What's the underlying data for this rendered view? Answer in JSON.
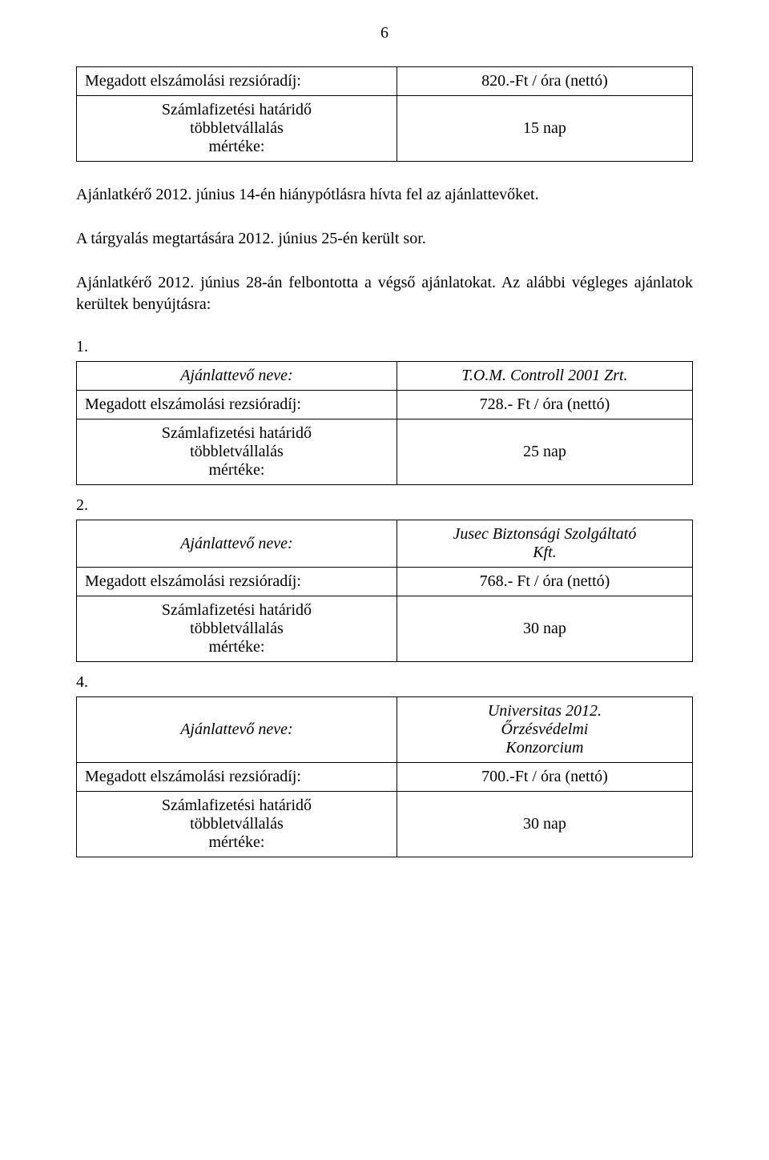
{
  "page_number": "6",
  "labels": {
    "ajanlattevo_neve": "Ajánlattevő neve:",
    "megadott_rezsi": "Megadott elszámolási rezsióradíj:",
    "szamlafizetesi_l1": "Számlafizetési határidő",
    "szamlafizetesi_l2": "többletvállalás",
    "szamlafizetesi_l3": "mértéke:"
  },
  "top_table": {
    "rate": "820.-Ft / óra (nettó)",
    "days": "15 nap"
  },
  "para1": "Ajánlatkérő 2012. június 14-én hiánypótlásra hívta fel az ajánlattevőket.",
  "para2": "A tárgyalás megtartására 2012. június 25-én került sor.",
  "para3": "Ajánlatkérő 2012. június 28-án felbontotta a végső ajánlatokat. Az alábbi végleges ajánlatok kerültek benyújtásra:",
  "section1": {
    "num": "1.",
    "name": "T.O.M. Controll 2001 Zrt.",
    "rate": "728.- Ft / óra (nettó)",
    "days": "25 nap"
  },
  "section2": {
    "num": "2.",
    "name_l1": "Jusec Biztonsági Szolgáltató",
    "name_l2": "Kft.",
    "rate": "768.- Ft / óra (nettó)",
    "days": "30 nap"
  },
  "section4": {
    "num": "4.",
    "name_l1": "Universitas 2012.",
    "name_l2": "Őrzésvédelmi",
    "name_l3": "Konzorcium",
    "rate": "700.-Ft / óra (nettó)",
    "days": "30 nap"
  },
  "colors": {
    "text": "#000000",
    "background": "#ffffff",
    "border": "#000000"
  }
}
